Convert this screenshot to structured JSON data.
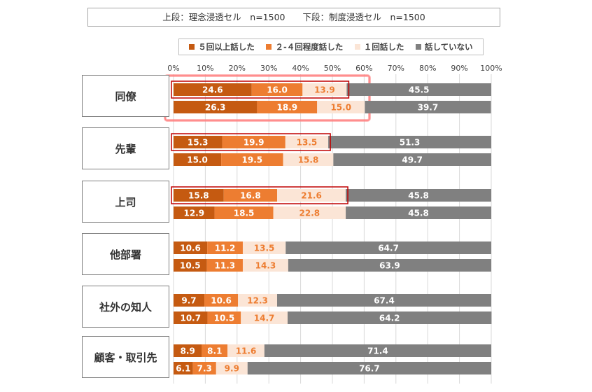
{
  "note": {
    "upper": "上段：理念浸透セル　n=1500",
    "lower": "下段：制度浸透セル　n=1500"
  },
  "colors": {
    "s1": "#c55a11",
    "s2": "#ed7d31",
    "s3": "#fbe5d6",
    "s4": "#808080",
    "highlight": "#c00000",
    "glow": "#ff8080"
  },
  "chart_data": {
    "type": "bar",
    "orientation": "horizontal-stacked-100",
    "xlim": [
      0,
      100
    ],
    "x_ticks": [
      "0%",
      "10%",
      "20%",
      "30%",
      "40%",
      "50%",
      "60%",
      "70%",
      "80%",
      "90%",
      "100%"
    ],
    "grid": true,
    "legend_position": "top",
    "series": [
      {
        "name": "５回以上話した"
      },
      {
        "name": "２-４回程度話した"
      },
      {
        "name": "１回話した"
      },
      {
        "name": "話していない"
      }
    ],
    "categories": [
      {
        "label": "同僚",
        "rows": [
          [
            24.6,
            16.0,
            13.9,
            45.5
          ],
          [
            26.3,
            18.9,
            15.0,
            39.7
          ]
        ],
        "highlight": "both",
        "glow": true
      },
      {
        "label": "先輩",
        "rows": [
          [
            15.3,
            19.9,
            13.5,
            51.3
          ],
          [
            15.0,
            19.5,
            15.8,
            49.7
          ]
        ],
        "highlight": "top",
        "glow": false
      },
      {
        "label": "上司",
        "rows": [
          [
            15.8,
            16.8,
            21.6,
            45.8
          ],
          [
            12.9,
            18.5,
            22.8,
            45.8
          ]
        ],
        "highlight": "top",
        "glow": false
      },
      {
        "label": "他部署",
        "rows": [
          [
            10.6,
            11.2,
            13.5,
            64.7
          ],
          [
            10.5,
            11.3,
            14.3,
            63.9
          ]
        ],
        "highlight": "none",
        "glow": false
      },
      {
        "label": "社外の知人",
        "rows": [
          [
            9.7,
            10.6,
            12.3,
            67.4
          ],
          [
            10.7,
            10.5,
            14.7,
            64.2
          ]
        ],
        "highlight": "none",
        "glow": false
      },
      {
        "label": "顧客・取引先",
        "rows": [
          [
            8.9,
            8.1,
            11.6,
            71.4
          ],
          [
            6.1,
            7.3,
            9.9,
            76.7
          ]
        ],
        "highlight": "none",
        "glow": false
      }
    ]
  }
}
